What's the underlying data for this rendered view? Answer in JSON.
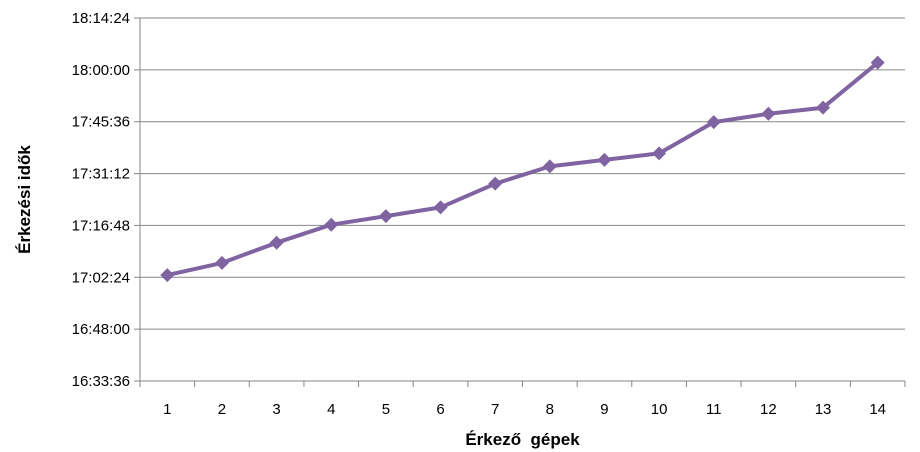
{
  "chart_data": {
    "type": "line",
    "xlabel": "Érkező  gépek",
    "ylabel": "Érkezési idők",
    "categories": [
      "1",
      "2",
      "3",
      "4",
      "5",
      "6",
      "7",
      "8",
      "9",
      "10",
      "11",
      "12",
      "13",
      "14"
    ],
    "series": [
      {
        "values": [
          "17:03:00",
          "17:06:24",
          "17:12:00",
          "17:17:00",
          "17:19:24",
          "17:21:48",
          "17:28:24",
          "17:33:12",
          "17:35:00",
          "17:36:48",
          "17:45:30",
          "17:47:48",
          "17:49:30",
          "18:02:00"
        ],
        "color": "#8064A2",
        "marker": "diamond"
      }
    ],
    "y_ticks": [
      "16:33:36",
      "16:48:00",
      "17:02:24",
      "17:16:48",
      "17:31:12",
      "17:45:36",
      "18:00:00",
      "18:14:24"
    ],
    "ylim": [
      "16:33:36",
      "18:14:24"
    ],
    "grid": {
      "horizontal": true,
      "vertical": false
    },
    "gridline_color": "#868686",
    "legend": "none"
  }
}
